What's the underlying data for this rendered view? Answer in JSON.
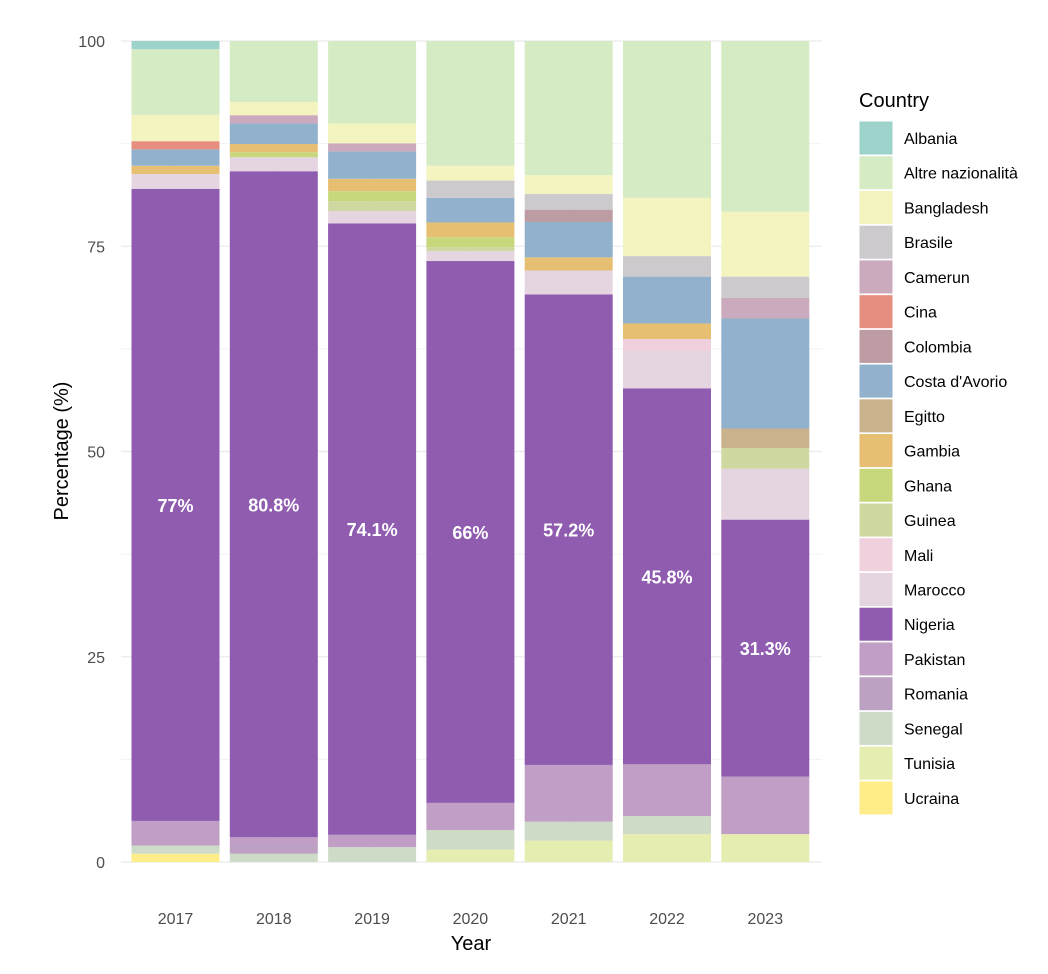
{
  "chart_data": {
    "type": "bar",
    "stacked": true,
    "title": "",
    "xlabel": "Year",
    "ylabel": "Percentage (%)",
    "ylim": [
      0,
      100
    ],
    "yticks": [
      0,
      25,
      50,
      75,
      100
    ],
    "categories": [
      "2017",
      "2018",
      "2019",
      "2020",
      "2021",
      "2022",
      "2023"
    ],
    "grid": true,
    "legend_title": "Country",
    "legend_position": "right",
    "series": [
      {
        "name": "Ucraina",
        "color": "#FFED8A",
        "values": [
          1.0,
          0,
          0,
          0,
          0,
          0,
          0
        ]
      },
      {
        "name": "Tunisia",
        "color": "#E6EDB1",
        "values": [
          0,
          0,
          0,
          1.5,
          2.6,
          3.4,
          3.4
        ]
      },
      {
        "name": "Senegal",
        "color": "#CEDCC7",
        "values": [
          1.0,
          1.0,
          1.8,
          2.4,
          2.3,
          2.2,
          0
        ]
      },
      {
        "name": "Romania",
        "color": "#BCA1C3",
        "values": [
          0,
          1.0,
          0,
          0,
          0,
          0,
          0
        ]
      },
      {
        "name": "Pakistan",
        "color": "#C09EC5",
        "values": [
          3.0,
          1.0,
          1.5,
          3.3,
          6.9,
          6.3,
          7.0
        ]
      },
      {
        "name": "Nigeria",
        "color": "#8F5CB0",
        "values": [
          77.0,
          80.8,
          74.1,
          66.0,
          57.2,
          45.8,
          31.3
        ]
      },
      {
        "name": "Marocco",
        "color": "#E5D5E0",
        "values": [
          1.8,
          1.7,
          1.5,
          1.2,
          2.9,
          4.6,
          6.2
        ]
      },
      {
        "name": "Mali",
        "color": "#F1D0DE",
        "values": [
          0,
          0,
          0,
          0,
          0,
          1.4,
          0
        ]
      },
      {
        "name": "Guinea",
        "color": "#CFD8A0",
        "values": [
          0,
          0,
          1.2,
          0.5,
          0,
          0,
          2.5
        ]
      },
      {
        "name": "Ghana",
        "color": "#C6D77C",
        "values": [
          0,
          0.6,
          1.2,
          1.2,
          0,
          0,
          0
        ]
      },
      {
        "name": "Gambia",
        "color": "#E6BF72",
        "values": [
          1.0,
          1.0,
          1.5,
          1.8,
          1.6,
          1.9,
          0
        ]
      },
      {
        "name": "Egitto",
        "color": "#C9B28C",
        "values": [
          0,
          0,
          0,
          0,
          0,
          0,
          2.4
        ]
      },
      {
        "name": "Costa d'Avorio",
        "color": "#91B1CD",
        "values": [
          2.0,
          2.5,
          3.3,
          3.0,
          4.3,
          5.7,
          13.4
        ]
      },
      {
        "name": "Colombia",
        "color": "#BD9CA3",
        "values": [
          0,
          0,
          0,
          0,
          1.5,
          0,
          0
        ]
      },
      {
        "name": "Cina",
        "color": "#E68F80",
        "values": [
          1.0,
          0,
          0,
          0,
          0,
          0,
          0
        ]
      },
      {
        "name": "Camerun",
        "color": "#CCAABD",
        "values": [
          0,
          1.0,
          1.0,
          0,
          0,
          0,
          2.5
        ]
      },
      {
        "name": "Brasile",
        "color": "#CDCACE",
        "values": [
          0,
          0,
          0,
          2.1,
          1.9,
          2.5,
          2.6
        ]
      },
      {
        "name": "Bangladesh",
        "color": "#F4F4C0",
        "values": [
          3.2,
          1.6,
          2.4,
          1.8,
          2.3,
          7.1,
          7.9
        ]
      },
      {
        "name": "Altre nazionalità",
        "color": "#D5EBC3",
        "values": [
          8.0,
          7.4,
          10.0,
          15.2,
          16.3,
          19.1,
          20.8
        ]
      },
      {
        "name": "Albania",
        "color": "#9ED3CB",
        "values": [
          1.0,
          0,
          0,
          0,
          0,
          0,
          0
        ]
      }
    ],
    "legend_order": [
      "Albania",
      "Altre nazionalità",
      "Bangladesh",
      "Brasile",
      "Camerun",
      "Cina",
      "Colombia",
      "Costa d'Avorio",
      "Egitto",
      "Gambia",
      "Ghana",
      "Guinea",
      "Mali",
      "Marocco",
      "Nigeria",
      "Pakistan",
      "Romania",
      "Senegal",
      "Tunisia",
      "Ucraina"
    ],
    "data_labels": {
      "series": "Nigeria",
      "labels": [
        "77%",
        "80.8%",
        "74.1%",
        "66%",
        "57.2%",
        "45.8%",
        "31.3%"
      ]
    }
  }
}
